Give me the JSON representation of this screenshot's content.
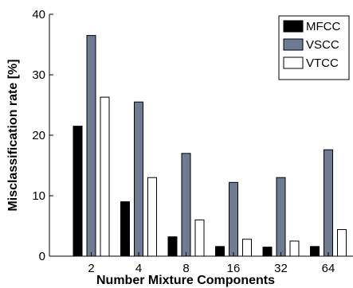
{
  "chart_data": {
    "type": "bar",
    "categories": [
      "2",
      "4",
      "8",
      "16",
      "32",
      "64"
    ],
    "series": [
      {
        "name": "MFCC",
        "color": "#000000",
        "values": [
          21.5,
          9.0,
          3.2,
          1.6,
          1.5,
          1.6
        ]
      },
      {
        "name": "VSCC",
        "color": "#6e7b92",
        "values": [
          36.5,
          25.5,
          17.0,
          12.2,
          13.0,
          17.6
        ]
      },
      {
        "name": "VTCC",
        "color": "#ffffff",
        "values": [
          26.3,
          13.0,
          6.0,
          2.8,
          2.5,
          4.4
        ]
      }
    ],
    "xlabel": "Number Mixture Components",
    "ylabel": "Misclassification rate [%]",
    "ylim": [
      0,
      40
    ],
    "yticks": [
      "0",
      "10",
      "20",
      "30",
      "40"
    ],
    "grid": false,
    "legend_position": "top-right"
  }
}
